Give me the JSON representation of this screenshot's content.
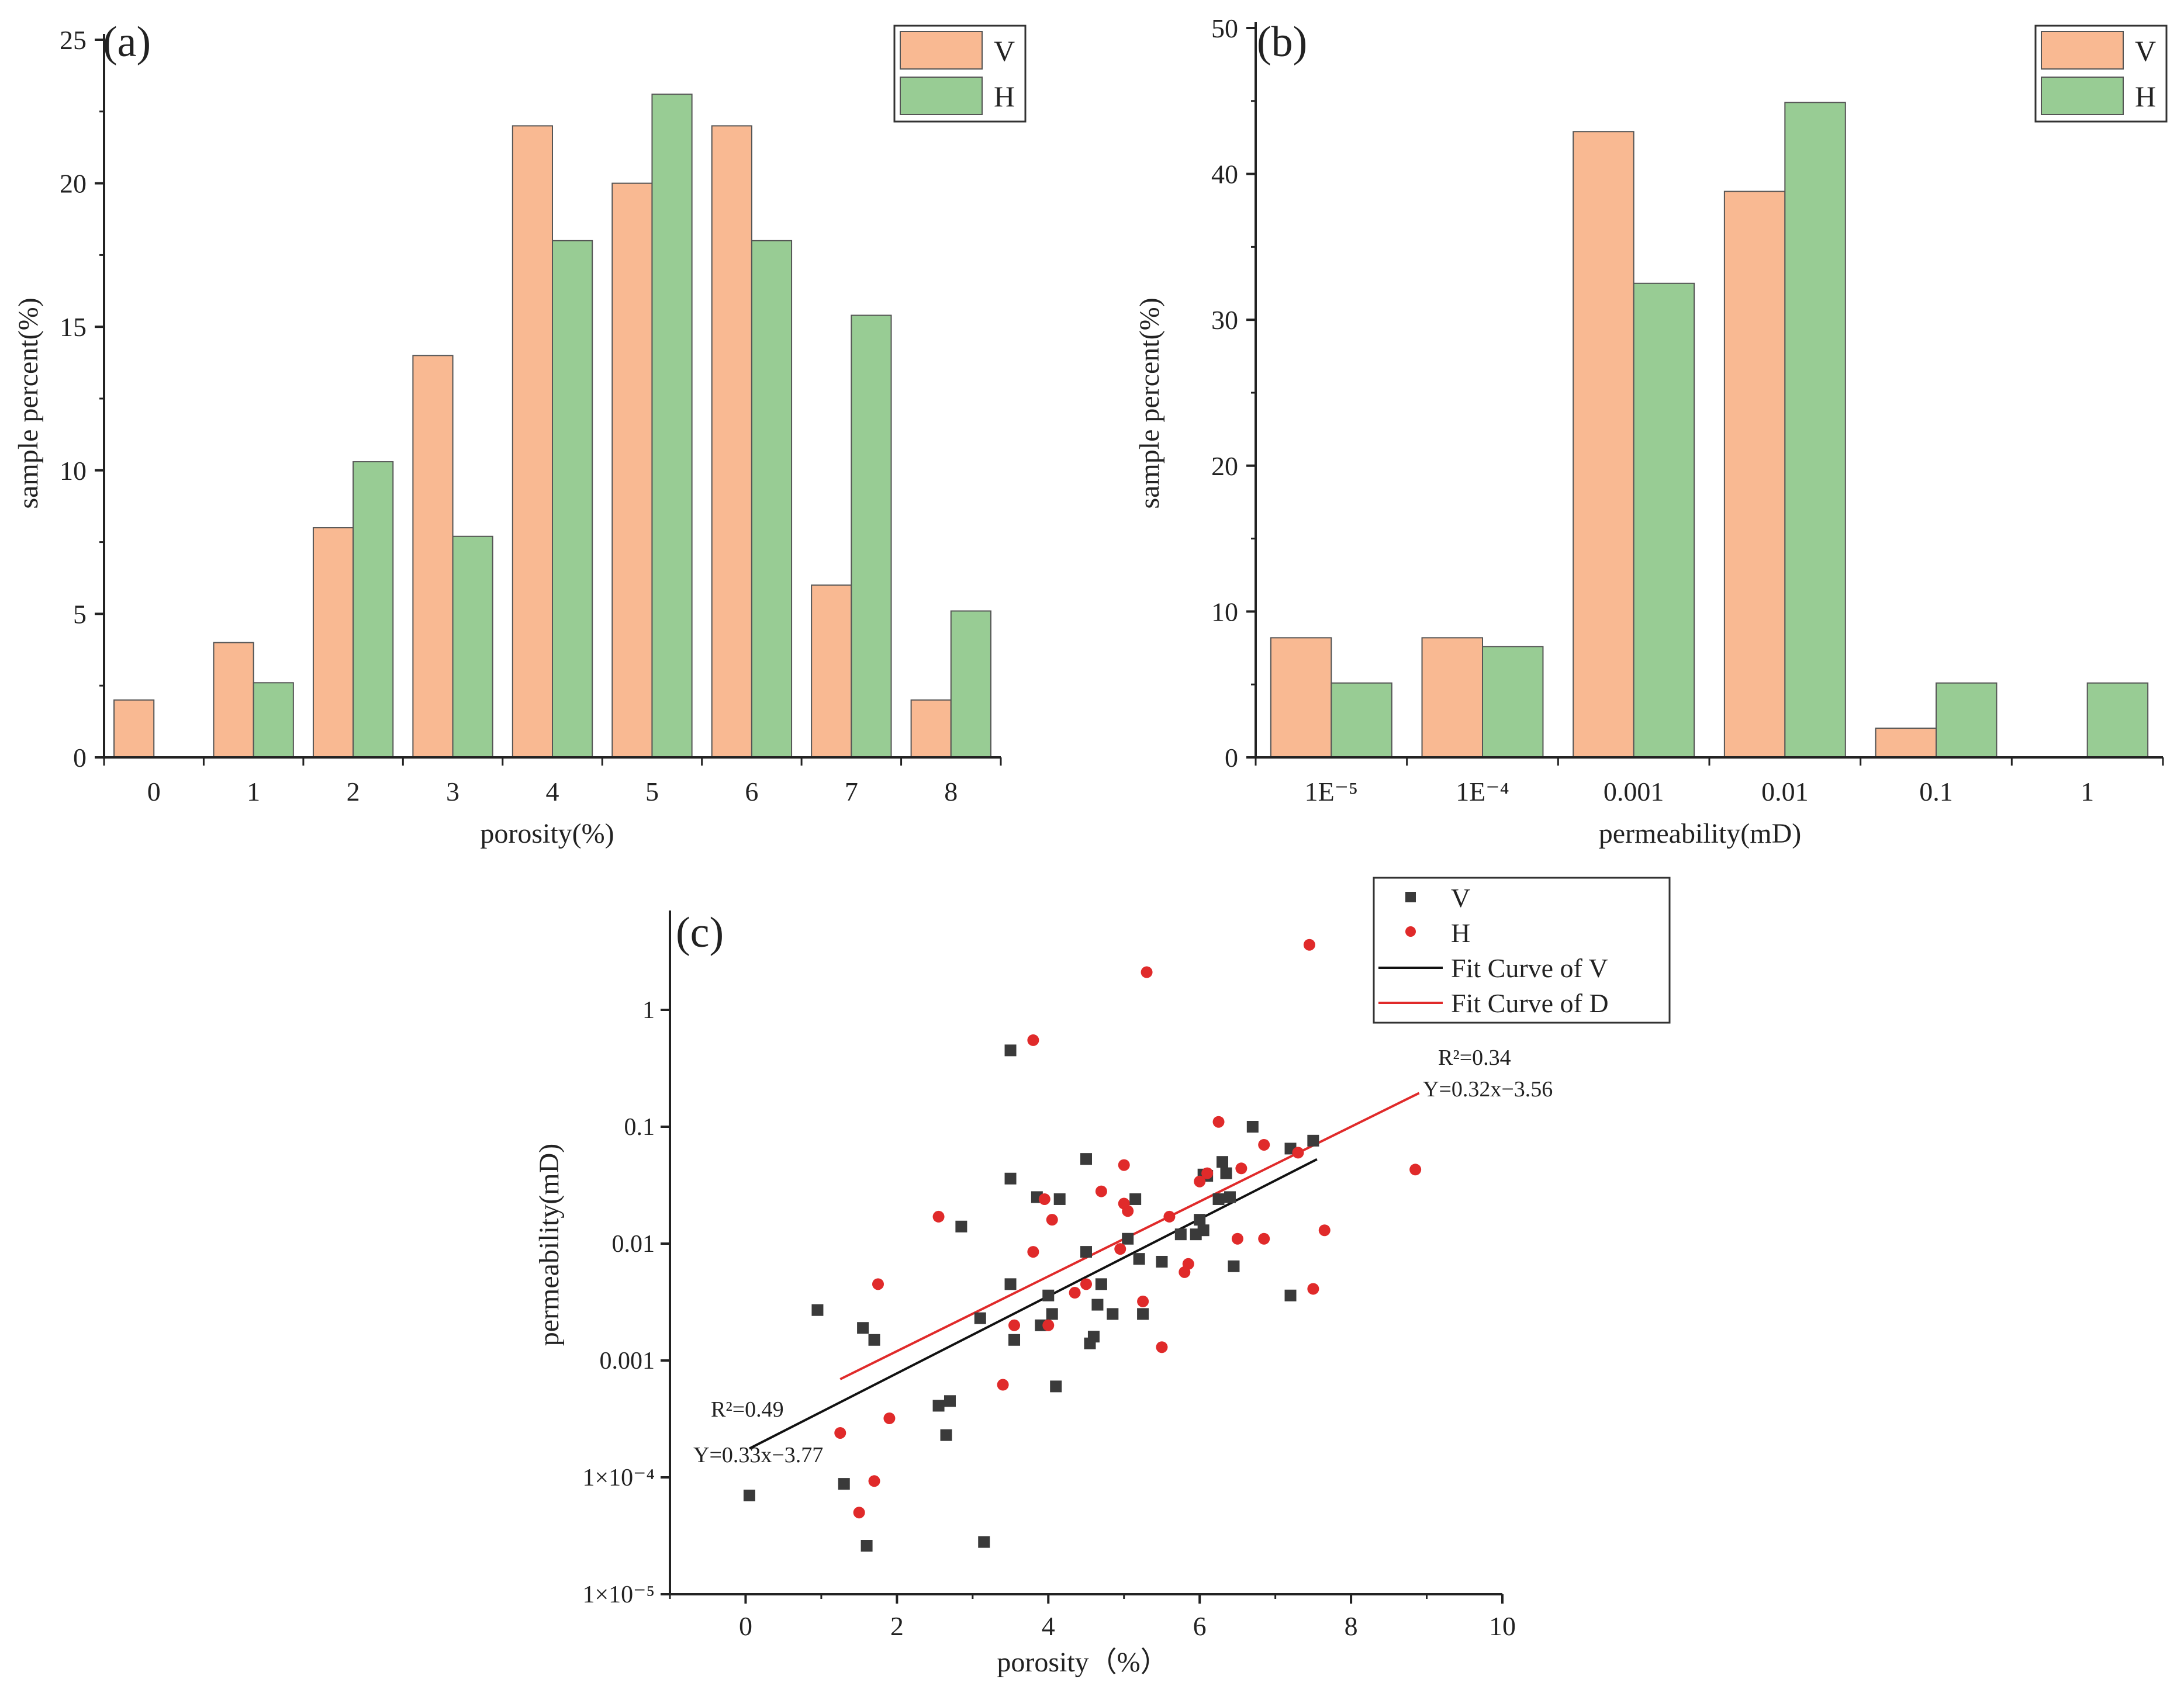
{
  "colors": {
    "V_bar": "#F9B992",
    "H_bar": "#98CC94",
    "V_point": "#3a3a3a",
    "H_point": "#e02a2a",
    "fit_V": "#111111",
    "fit_D": "#e02a2a",
    "axis": "#222222"
  },
  "chart_data": [
    {
      "id": "a",
      "type": "bar",
      "panel_label": "(a)",
      "xlabel": "porosity(%)",
      "ylabel": "sample percent(%)",
      "categories": [
        "0",
        "1",
        "2",
        "3",
        "4",
        "5",
        "6",
        "7",
        "8"
      ],
      "ylim": [
        0,
        25
      ],
      "yticks": [
        "0",
        "5",
        "10",
        "15",
        "20",
        "25"
      ],
      "series": [
        {
          "name": "V",
          "values": [
            2,
            4,
            8,
            14,
            22,
            20,
            22,
            6,
            2
          ]
        },
        {
          "name": "H",
          "values": [
            0,
            2.6,
            10.3,
            7.7,
            18,
            23.1,
            18,
            15.4,
            5.1
          ]
        }
      ]
    },
    {
      "id": "b",
      "type": "bar",
      "panel_label": "(b)",
      "xlabel": "permeability(mD)",
      "ylabel": "sample percent(%)",
      "categories": [
        "1E⁻⁵",
        "1E⁻⁴",
        "0.001",
        "0.01",
        "0.1",
        "1"
      ],
      "ylim": [
        0,
        50
      ],
      "yticks": [
        "0",
        "10",
        "20",
        "30",
        "40",
        "50"
      ],
      "series": [
        {
          "name": "V",
          "values": [
            8.2,
            8.2,
            42.9,
            38.8,
            2,
            0
          ]
        },
        {
          "name": "H",
          "values": [
            5.1,
            7.6,
            32.5,
            44.9,
            5.1,
            5.1
          ]
        }
      ]
    },
    {
      "id": "c",
      "type": "scatter",
      "panel_label": "(c)",
      "xlabel": "porosity（%）",
      "ylabel": "permeability(mD)",
      "xlim": [
        -1,
        10
      ],
      "xticks": [
        "0",
        "2",
        "4",
        "6",
        "8",
        "10"
      ],
      "ylim_log10": [
        -5,
        0.85
      ],
      "yticks": [
        "1×10⁻⁵",
        "1×10⁻⁴",
        "0.001",
        "0.01",
        "0.1",
        "1"
      ],
      "series": [
        {
          "name": "V",
          "points": [
            [
              0.05,
              7e-05
            ],
            [
              0.95,
              0.0027
            ],
            [
              1.3,
              8.8e-05
            ],
            [
              1.55,
              0.0019
            ],
            [
              1.6,
              2.6e-05
            ],
            [
              1.7,
              0.0015
            ],
            [
              2.55,
              0.00041
            ],
            [
              2.65,
              0.00023
            ],
            [
              2.7,
              0.00045
            ],
            [
              2.85,
              0.014
            ],
            [
              3.1,
              0.0023
            ],
            [
              3.15,
              2.8e-05
            ],
            [
              3.5,
              0.45
            ],
            [
              3.5,
              0.036
            ],
            [
              3.5,
              0.0045
            ],
            [
              3.55,
              0.0015
            ],
            [
              3.85,
              0.025
            ],
            [
              3.9,
              0.002
            ],
            [
              4.0,
              0.0036
            ],
            [
              4.05,
              0.0025
            ],
            [
              4.1,
              0.0006
            ],
            [
              4.15,
              0.024
            ],
            [
              4.5,
              0.0085
            ],
            [
              4.55,
              0.0014
            ],
            [
              4.6,
              0.0016
            ],
            [
              4.65,
              0.003
            ],
            [
              4.7,
              0.0045
            ],
            [
              4.85,
              0.0025
            ],
            [
              5.05,
              0.011
            ],
            [
              5.15,
              0.024
            ],
            [
              5.2,
              0.0074
            ],
            [
              5.25,
              0.0025
            ],
            [
              5.5,
              0.007
            ],
            [
              5.75,
              0.012
            ],
            [
              5.95,
              0.012
            ],
            [
              6.0,
              0.016
            ],
            [
              6.05,
              0.013
            ],
            [
              6.05,
              0.039
            ],
            [
              6.1,
              0.038
            ],
            [
              6.25,
              0.024
            ],
            [
              6.35,
              0.04
            ],
            [
              6.4,
              0.025
            ],
            [
              6.45,
              0.0064
            ],
            [
              6.7,
              0.1
            ],
            [
              7.2,
              0.065
            ],
            [
              7.2,
              0.0036
            ],
            [
              7.5,
              0.076
            ],
            [
              4.5,
              0.053
            ],
            [
              6.3,
              0.05
            ]
          ]
        },
        {
          "name": "H",
          "points": [
            [
              1.25,
              0.00024
            ],
            [
              1.5,
              5e-05
            ],
            [
              1.7,
              9.3e-05
            ],
            [
              1.75,
              0.0045
            ],
            [
              1.9,
              0.00032
            ],
            [
              2.55,
              0.017
            ],
            [
              3.4,
              0.00062
            ],
            [
              3.55,
              0.002
            ],
            [
              3.8,
              0.55
            ],
            [
              3.8,
              0.0085
            ],
            [
              3.95,
              0.024
            ],
            [
              4.0,
              0.002
            ],
            [
              4.05,
              0.016
            ],
            [
              4.35,
              0.0038
            ],
            [
              4.5,
              0.0045
            ],
            [
              4.7,
              0.028
            ],
            [
              4.95,
              0.009
            ],
            [
              5.0,
              0.047
            ],
            [
              5.0,
              0.022
            ],
            [
              5.05,
              0.019
            ],
            [
              5.25,
              0.0032
            ],
            [
              5.3,
              2.1
            ],
            [
              5.5,
              0.0013
            ],
            [
              5.6,
              0.017
            ],
            [
              5.8,
              0.0057
            ],
            [
              5.85,
              0.0067
            ],
            [
              6.0,
              0.034
            ],
            [
              6.1,
              0.04
            ],
            [
              6.25,
              0.11
            ],
            [
              6.5,
              0.011
            ],
            [
              6.55,
              0.044
            ],
            [
              6.85,
              0.07
            ],
            [
              6.85,
              0.011
            ],
            [
              7.3,
              0.06
            ],
            [
              7.45,
              3.6
            ],
            [
              7.5,
              0.0041
            ],
            [
              7.65,
              0.013
            ],
            [
              8.85,
              0.043
            ]
          ]
        }
      ],
      "fits": [
        {
          "name": "Fit Curve of V",
          "slope": 0.33,
          "intercept": -3.77,
          "x_range": [
            0.05,
            7.55
          ],
          "r2_label": "R²=0.49",
          "eq_label": "Y=0.33x−3.77"
        },
        {
          "name": "Fit Curve of D",
          "slope": 0.32,
          "intercept": -3.56,
          "x_range": [
            1.25,
            8.9
          ],
          "r2_label": "R²=0.34",
          "eq_label": "Y=0.32x−3.56"
        }
      ],
      "legend": [
        "V",
        "H",
        "Fit Curve of V",
        "Fit Curve of D"
      ]
    }
  ]
}
